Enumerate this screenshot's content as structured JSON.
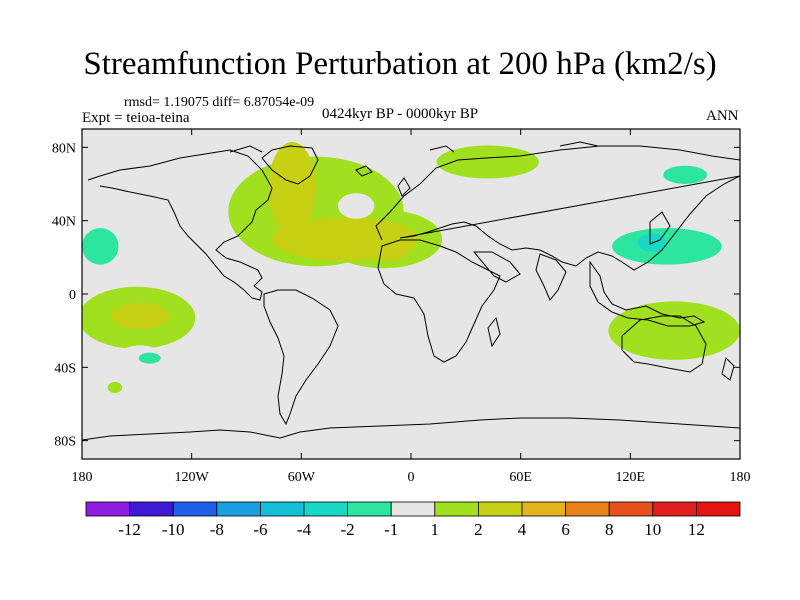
{
  "chart_data": {
    "type": "heatmap",
    "title": "Streamfunction Perturbation at 200 hPa (km2/s)",
    "rmsd_line": "rmsd= 1.19075  diff= 6.87054e-09",
    "experiment": "Expt = teioa-teina",
    "period": "0424kyr BP - 0000kyr BP",
    "season": "ANN",
    "x_ticks": [
      "180",
      "120W",
      "60W",
      "0",
      "60E",
      "120E",
      "180"
    ],
    "x_values": [
      -180,
      -120,
      -60,
      0,
      60,
      120,
      180
    ],
    "y_ticks": [
      "80N",
      "40N",
      "0",
      "40S",
      "80S"
    ],
    "y_values": [
      80,
      40,
      0,
      -40,
      -80
    ],
    "xlim": [
      -180,
      180
    ],
    "ylim": [
      -90,
      90
    ],
    "colorbar": {
      "labels": [
        "-12",
        "-10",
        "-8",
        "-6",
        "-4",
        "-2",
        "-1",
        "1",
        "2",
        "4",
        "6",
        "8",
        "10",
        "12"
      ],
      "colors": [
        "#8f1ee0",
        "#3e1ad6",
        "#1e5ee8",
        "#1aa0e0",
        "#14c0d8",
        "#1ad8c8",
        "#2ce6a0",
        "#e6e6e6",
        "#a0e01e",
        "#c8d014",
        "#e0b41a",
        "#e6821a",
        "#e6501a",
        "#e01e1e",
        "#e6140e"
      ]
    },
    "regions": [
      {
        "lon": -156,
        "lat": 28,
        "rx": 30,
        "ry": 20,
        "level": "-1"
      },
      {
        "lon": -170,
        "lat": 26,
        "rx": 10,
        "ry": 10,
        "level": "-2"
      },
      {
        "lon": -118,
        "lat": 38,
        "rx": 10,
        "ry": 5,
        "level": "-1"
      },
      {
        "lon": -52,
        "lat": 45,
        "rx": 48,
        "ry": 30,
        "level": "1"
      },
      {
        "lon": -15,
        "lat": 30,
        "rx": 32,
        "ry": 16,
        "level": "1"
      },
      {
        "lon": -65,
        "lat": 58,
        "rx": 13,
        "ry": 25,
        "level": "2"
      },
      {
        "lon": -36,
        "lat": 30,
        "rx": 40,
        "ry": 12,
        "level": "2"
      },
      {
        "lon": -12,
        "lat": 26,
        "rx": 12,
        "ry": 8,
        "level": "2"
      },
      {
        "lon": -30,
        "lat": 48,
        "rx": 10,
        "ry": 7,
        "level": "-1"
      },
      {
        "lon": 42,
        "lat": 72,
        "rx": 28,
        "ry": 9,
        "level": "1"
      },
      {
        "lon": 155,
        "lat": 65,
        "rx": 26,
        "ry": 13,
        "level": "-1"
      },
      {
        "lon": 150,
        "lat": 65,
        "rx": 12,
        "ry": 5,
        "level": "-2"
      },
      {
        "lon": 125,
        "lat": 32,
        "rx": 55,
        "ry": 22,
        "level": "-1"
      },
      {
        "lon": 140,
        "lat": 26,
        "rx": 30,
        "ry": 10,
        "level": "-2"
      },
      {
        "lon": 132,
        "lat": 28,
        "rx": 8,
        "ry": 5,
        "level": "-4"
      },
      {
        "lon": -150,
        "lat": -13,
        "rx": 32,
        "ry": 17,
        "level": "1"
      },
      {
        "lon": -148,
        "lat": -12,
        "rx": 16,
        "ry": 7,
        "level": "2"
      },
      {
        "lon": -148,
        "lat": -36,
        "rx": 14,
        "ry": 8,
        "level": "-1"
      },
      {
        "lon": -143,
        "lat": -35,
        "rx": 6,
        "ry": 3,
        "level": "-2"
      },
      {
        "lon": -162,
        "lat": -51,
        "rx": 4,
        "ry": 3,
        "level": "1"
      },
      {
        "lon": -63,
        "lat": -18,
        "rx": 20,
        "ry": 12,
        "level": "-1"
      },
      {
        "lon": 18,
        "lat": -14,
        "rx": 56,
        "ry": 13,
        "level": "-1"
      },
      {
        "lon": 144,
        "lat": -20,
        "rx": 36,
        "ry": 16,
        "level": "1"
      },
      {
        "lon": -12,
        "lat": -52,
        "rx": 7,
        "ry": 3,
        "level": "-1"
      },
      {
        "lon": -88,
        "lat": -22,
        "rx": 3,
        "ry": 2,
        "level": "-1"
      }
    ]
  }
}
